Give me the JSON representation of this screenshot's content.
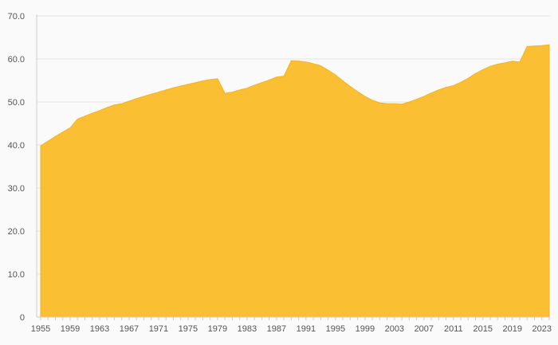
{
  "chart_data": {
    "type": "area",
    "title": "",
    "xlabel": "",
    "ylabel": "",
    "xlim": [
      1955,
      2024
    ],
    "ylim": [
      0,
      70
    ],
    "grid": true,
    "fill_color": "#fbbf33",
    "line_color": "#f5b21c",
    "y_ticks": [
      {
        "value": 0,
        "label": "0"
      },
      {
        "value": 10,
        "label": "10.0"
      },
      {
        "value": 20,
        "label": "20.0"
      },
      {
        "value": 30,
        "label": "30.0"
      },
      {
        "value": 40,
        "label": "40.0"
      },
      {
        "value": 50,
        "label": "50.0"
      },
      {
        "value": 60,
        "label": "60.0"
      },
      {
        "value": 70,
        "label": "70.0"
      }
    ],
    "x_ticks": [
      {
        "value": 1955,
        "label": "1955"
      },
      {
        "value": 1959,
        "label": "1959"
      },
      {
        "value": 1963,
        "label": "1963"
      },
      {
        "value": 1967,
        "label": "1967"
      },
      {
        "value": 1971,
        "label": "1971"
      },
      {
        "value": 1975,
        "label": "1975"
      },
      {
        "value": 1979,
        "label": "1979"
      },
      {
        "value": 1983,
        "label": "1983"
      },
      {
        "value": 1987,
        "label": "1987"
      },
      {
        "value": 1991,
        "label": "1991"
      },
      {
        "value": 1995,
        "label": "1995"
      },
      {
        "value": 1999,
        "label": "1999"
      },
      {
        "value": 2003,
        "label": "2003"
      },
      {
        "value": 2007,
        "label": "2007"
      },
      {
        "value": 2011,
        "label": "2011"
      },
      {
        "value": 2015,
        "label": "2015"
      },
      {
        "value": 2019,
        "label": "2019"
      },
      {
        "value": 2023,
        "label": "2023"
      }
    ],
    "x": [
      1955,
      1956,
      1957,
      1958,
      1959,
      1960,
      1961,
      1962,
      1963,
      1964,
      1965,
      1966,
      1967,
      1968,
      1969,
      1970,
      1971,
      1972,
      1973,
      1974,
      1975,
      1976,
      1977,
      1978,
      1979,
      1980,
      1981,
      1982,
      1983,
      1984,
      1985,
      1986,
      1987,
      1988,
      1989,
      1990,
      1991,
      1992,
      1993,
      1994,
      1995,
      1996,
      1997,
      1998,
      1999,
      2000,
      2001,
      2002,
      2003,
      2004,
      2005,
      2006,
      2007,
      2008,
      2009,
      2010,
      2011,
      2012,
      2013,
      2014,
      2015,
      2016,
      2017,
      2018,
      2019,
      2020,
      2021,
      2022,
      2023,
      2024
    ],
    "series": [
      {
        "values": [
          39.8,
          40.9,
          42.0,
          43.0,
          44.0,
          46.0,
          46.7,
          47.4,
          48.0,
          48.7,
          49.3,
          49.6,
          50.2,
          50.8,
          51.3,
          51.8,
          52.3,
          52.8,
          53.3,
          53.7,
          54.1,
          54.5,
          54.9,
          55.2,
          55.4,
          52.0,
          52.3,
          52.8,
          53.2,
          53.9,
          54.5,
          55.1,
          55.8,
          56.0,
          59.6,
          59.5,
          59.3,
          58.9,
          58.4,
          57.4,
          56.3,
          54.9,
          53.6,
          52.4,
          51.3,
          50.4,
          49.8,
          49.6,
          49.6,
          49.5,
          50.0,
          50.6,
          51.3,
          52.1,
          52.8,
          53.4,
          53.8,
          54.6,
          55.5,
          56.6,
          57.5,
          58.3,
          58.8,
          59.1,
          59.5,
          59.3,
          62.9,
          63.0,
          63.1,
          63.3
        ]
      }
    ]
  }
}
